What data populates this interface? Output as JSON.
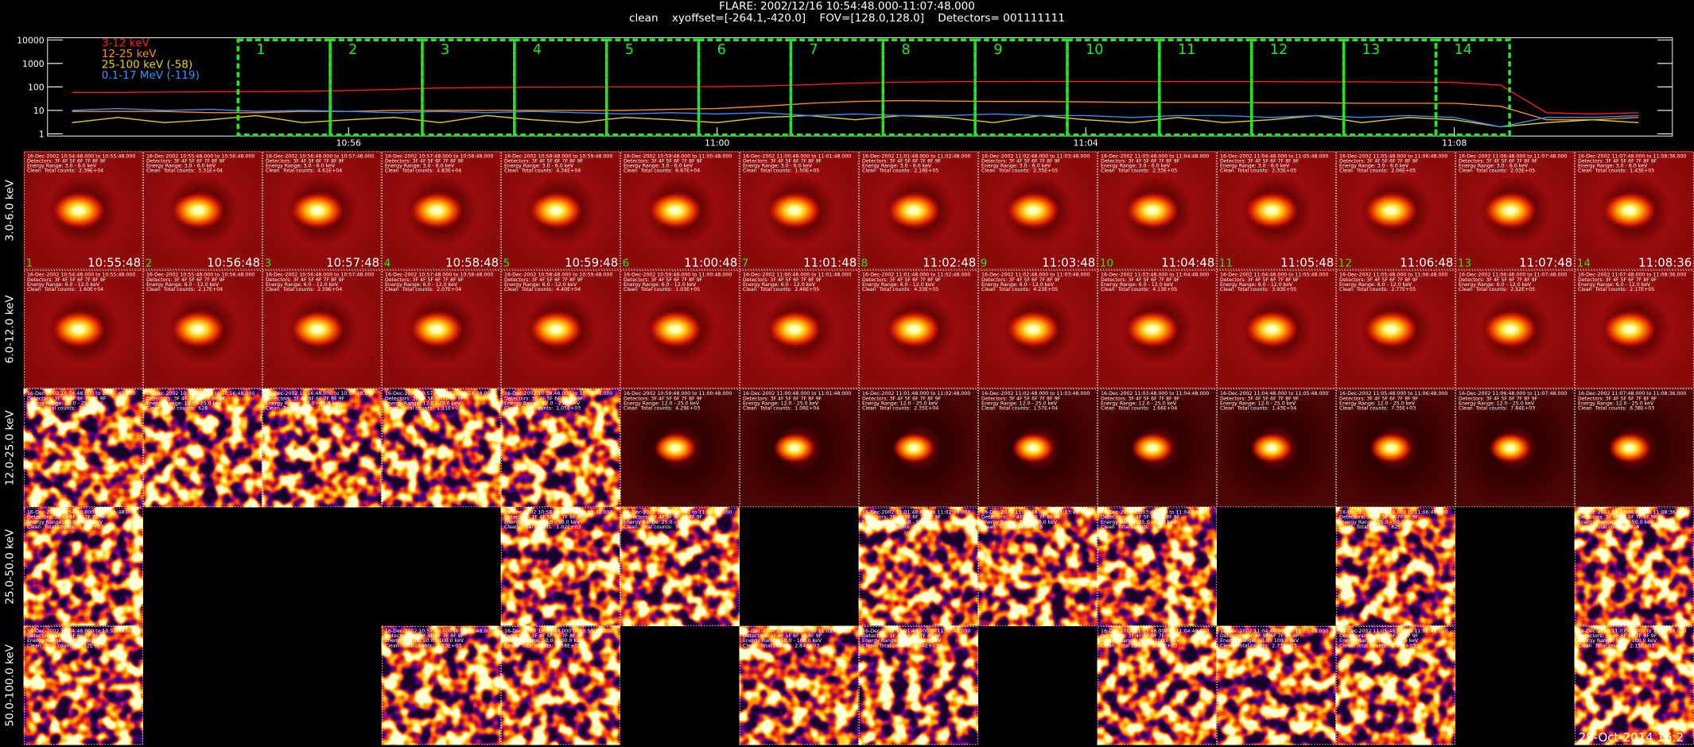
{
  "header": {
    "title": "FLARE: 2002/12/16 10:54:48.000-11:07:48.000",
    "subtitle": "clean    xyoffset=[-264.1,-420.0]    FOV=[128.0,128.0]    Detectors= 001111111"
  },
  "chart_data": {
    "type": "line",
    "log_y": true,
    "legend": "upper left",
    "x": [
      "10:53:00",
      "10:53:30",
      "10:54:00",
      "10:54:30",
      "10:55:00",
      "10:55:30",
      "10:56:00",
      "10:56:30",
      "10:57:00",
      "10:57:30",
      "10:58:00",
      "10:58:30",
      "10:59:00",
      "10:59:30",
      "11:00:00",
      "11:00:30",
      "11:01:00",
      "11:01:30",
      "11:02:00",
      "11:02:30",
      "11:03:00",
      "11:03:30",
      "11:04:00",
      "11:04:30",
      "11:05:00",
      "11:05:30",
      "11:06:00",
      "11:06:30",
      "11:07:00",
      "11:07:30",
      "11:08:00",
      "11:08:30",
      "11:09:00",
      "11:09:30",
      "11:10:00"
    ],
    "xlim": [
      "10:52:44",
      "11:10:22"
    ],
    "xticks": [
      "10:56",
      "11:00",
      "11:04",
      "11:08"
    ],
    "ylim": [
      1,
      10000
    ],
    "yticks": [
      1,
      10,
      100,
      1000,
      10000
    ],
    "series": [
      {
        "name": "3-12 keV",
        "color": "#ff1a1a",
        "values": [
          58,
          58,
          60,
          62,
          63,
          65,
          70,
          78,
          90,
          95,
          97,
          98,
          100,
          100,
          102,
          110,
          125,
          145,
          160,
          168,
          170,
          172,
          172,
          170,
          170,
          168,
          168,
          165,
          165,
          160,
          155,
          120,
          8,
          7,
          8
        ]
      },
      {
        "name": "12-25 keV",
        "color": "#ff8c1a",
        "values": [
          9,
          9,
          9,
          8,
          8,
          9,
          9,
          10,
          10,
          10,
          10,
          10,
          10,
          11,
          12,
          15,
          20,
          24,
          26,
          25,
          24,
          24,
          23,
          22,
          22,
          22,
          21,
          21,
          20,
          20,
          20,
          15,
          4,
          4,
          5
        ]
      },
      {
        "name": "25-100 keV (-58)",
        "color": "#e6d21a",
        "values": [
          3,
          5,
          3,
          4,
          6,
          3,
          4,
          5,
          3,
          6,
          4,
          3,
          5,
          4,
          3,
          5,
          6,
          4,
          6,
          5,
          3,
          6,
          4,
          3,
          5,
          3,
          4,
          6,
          3,
          5,
          4,
          2,
          3,
          4,
          3
        ]
      },
      {
        "name": "0.1-17 MeV (-119)",
        "color": "#3a8cff",
        "values": [
          10,
          12,
          10,
          11,
          9,
          10,
          9,
          8,
          9,
          8,
          9,
          8,
          7,
          8,
          7,
          8,
          6,
          7,
          6,
          6,
          7,
          6,
          6,
          5,
          6,
          6,
          5,
          6,
          5,
          6,
          5,
          2,
          5,
          5,
          6
        ]
      }
    ],
    "intervals": [
      {
        "label": "1",
        "start": "10:54:48",
        "end": "10:55:48"
      },
      {
        "label": "2",
        "start": "10:55:48",
        "end": "10:56:48"
      },
      {
        "label": "3",
        "start": "10:56:48",
        "end": "10:57:48"
      },
      {
        "label": "4",
        "start": "10:57:48",
        "end": "10:58:48"
      },
      {
        "label": "5",
        "start": "10:58:48",
        "end": "10:59:48"
      },
      {
        "label": "6",
        "start": "10:59:48",
        "end": "11:00:48"
      },
      {
        "label": "7",
        "start": "11:00:48",
        "end": "11:01:48"
      },
      {
        "label": "8",
        "start": "11:01:48",
        "end": "11:02:48"
      },
      {
        "label": "9",
        "start": "11:02:48",
        "end": "11:03:48"
      },
      {
        "label": "10",
        "start": "11:03:48",
        "end": "11:04:48"
      },
      {
        "label": "11",
        "start": "11:04:48",
        "end": "11:05:48"
      },
      {
        "label": "12",
        "start": "11:05:48",
        "end": "11:06:48"
      },
      {
        "label": "13",
        "start": "11:06:48",
        "end": "11:07:48"
      },
      {
        "label": "14",
        "start": "11:07:48",
        "end": "11:08:36"
      }
    ]
  },
  "images": {
    "detectors": "Detectors: 3F 4F 5F 6F 7F 8F 9F",
    "method": "Clean",
    "counts_label": "Total counts:",
    "ranges": [
      "16-Dec-2002 10:54:48.000 to 10:55:48.000",
      "16-Dec-2002 10:55:48.000 to 10:56:48.000",
      "16-Dec-2002 10:56:48.000 to 10:57:48.000",
      "16-Dec-2002 10:57:48.000 to 10:58:48.000",
      "16-Dec-2002 10:58:48.000 to 10:59:48.000",
      "16-Dec-2002 10:59:48.000 to 11:00:48.000",
      "16-Dec-2002 11:00:48.000 to 11:01:48.000",
      "16-Dec-2002 11:01:48.000 to 11:02:48.000",
      "16-Dec-2002 11:02:48.000 to 11:03:48.000",
      "16-Dec-2002 11:03:48.000 to 11:04:48.000",
      "16-Dec-2002 11:04:48.000 to 11:05:48.000",
      "16-Dec-2002 11:05:48.000 to 11:06:48.000",
      "16-Dec-2002 11:06:48.000 to 11:07:48.000",
      "16-Dec-2002 11:07:48.000 to 11:08:36.000"
    ],
    "rows": [
      {
        "label": "3.0-6.0 keV",
        "energy": "Energy Range: 3.0 - 6.0 keV",
        "counts": [
          "2.39E+04",
          "3.31E+04",
          "4.61E+04",
          "4.83E+04",
          "4.34E+04",
          "6.67E+04",
          "1.50E+05",
          "2.18E+05",
          "2.35E+05",
          "2.33E+05",
          "2.33E+05",
          "2.06E+05",
          "2.03E+05",
          "1.43E+05"
        ]
      },
      {
        "label": "6.0-12.0 keV",
        "energy": "Energy Range: 6.0 - 12.0 keV",
        "counts": [
          "1.60E+04",
          "2.17E+04",
          "2.59E+04",
          "2.07E+04",
          "4.40E+04",
          "1.03E+05",
          "2.46E+05",
          "4.33E+05",
          "4.23E+05",
          "4.13E+05",
          "3.93E+05",
          "2.77E+05",
          "2.52E+05",
          "2.17E+05"
        ]
      },
      {
        "label": "12.0-25.0 keV",
        "energy": "Energy Range: 12.0 - 25.0 keV",
        "counts": [
          "754",
          "628",
          "1.33E+03",
          "1.11E+03",
          "1.05E+03",
          "4.29E+03",
          "1.06E+04",
          "2.35E+04",
          "1.57E+04",
          "1.66E+04",
          "1.43E+04",
          "7.35E+03",
          "7.84E+03",
          "6.38E+03"
        ]
      },
      {
        "label": "25.0-50.0 keV",
        "energy": "Energy Range: 25.0 - 50.0 keV",
        "counts": [
          "1.00E+03",
          null,
          null,
          null,
          "1.02E+03",
          "944",
          null,
          "814",
          "878",
          "874",
          null,
          "825",
          null,
          "814"
        ]
      },
      {
        "label": "50.0-100.0 keV",
        "energy": "Energy Range: 50.0 - 100.0 keV",
        "counts": [
          "2.52E+03",
          null,
          null,
          "2.53E+03",
          "2.58E+03",
          null,
          "2.84E+03",
          "2.84E+03",
          null,
          "2.84E+03",
          "2.73E+03",
          "2.53E+03",
          null,
          "2.15E+03"
        ]
      }
    ]
  },
  "footer": "28-Oct-2014 16:2"
}
